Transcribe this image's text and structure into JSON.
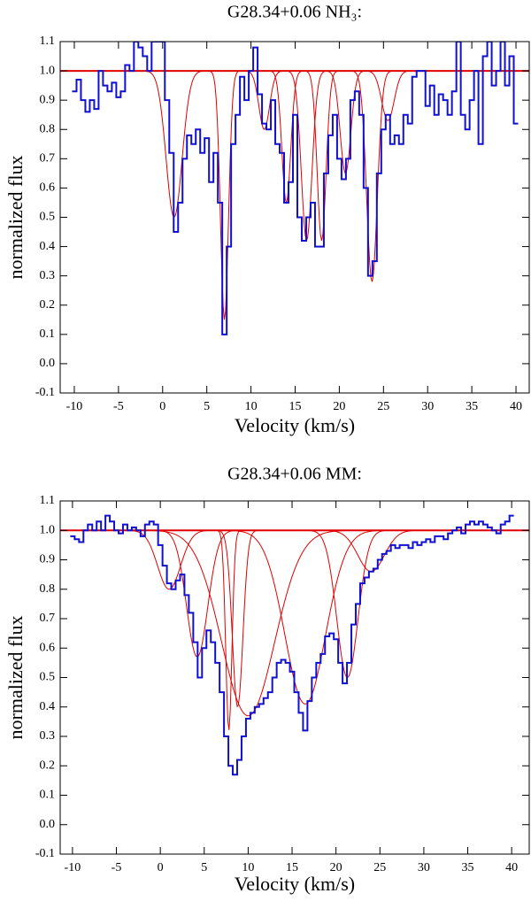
{
  "chart_data": [
    {
      "type": "step",
      "title": "G28.34+0.06 NH₃:",
      "x_label": "Velocity (km/s)",
      "y_label": "normalized flux",
      "xlim": [
        -11.6,
        41.5
      ],
      "ylim": [
        -0.1,
        1.1
      ],
      "xticks": [
        -10,
        -5,
        0,
        5,
        10,
        15,
        20,
        25,
        30,
        35,
        40
      ],
      "yticks": [
        -0.1,
        {
          "value": 0,
          "label": "0.0"
        },
        0.1,
        0.2,
        0.3,
        0.4,
        0.5,
        0.6,
        0.7,
        0.8,
        0.9,
        {
          "value": 1,
          "label": "1.0"
        },
        1.1
      ],
      "continuum": 1,
      "fit_color": "#e00000",
      "x": [
        -10,
        -9.5,
        -9,
        -8.5,
        -8,
        -7.5,
        -7,
        -6.5,
        -6,
        -5.5,
        -5,
        -4.5,
        -4,
        -3.5,
        -3,
        -2.5,
        -2,
        -1.5,
        -1,
        -0.5,
        0,
        0.5,
        1,
        1.5,
        2,
        2.5,
        3,
        3.5,
        4,
        4.5,
        5,
        5.5,
        6,
        6.5,
        7,
        7.5,
        8,
        8.5,
        9,
        9.5,
        10,
        10.5,
        11,
        11.5,
        12,
        12.5,
        13,
        13.5,
        14,
        14.5,
        15,
        15.5,
        16,
        16.5,
        17,
        17.5,
        18,
        18.5,
        19,
        19.5,
        20,
        20.5,
        21,
        21.5,
        22,
        22.5,
        23,
        23.5,
        24,
        24.5,
        25,
        25.5,
        26,
        26.5,
        27,
        27.5,
        28,
        28.5,
        29,
        29.5,
        30,
        30.5,
        31,
        31.5,
        32,
        32.5,
        33,
        33.5,
        34,
        34.5,
        35,
        35.5,
        36,
        36.5,
        37,
        37.5,
        38,
        38.5,
        39,
        39.5,
        40
      ],
      "series": [
        {
          "color": "#1010d0",
          "values": [
            0.93,
            0.97,
            0.9,
            0.86,
            0.9,
            0.87,
            1.0,
            0.95,
            0.93,
            0.96,
            0.91,
            0.93,
            1.02,
            1.0,
            1.1,
            1.08,
            1.05,
            1.0,
            1.1,
            1.1,
            1.1,
            0.9,
            0.72,
            0.45,
            0.55,
            0.7,
            0.78,
            0.75,
            0.8,
            0.72,
            0.77,
            0.62,
            0.72,
            0.55,
            0.1,
            0.4,
            0.75,
            0.85,
            0.98,
            0.9,
            1.0,
            1.08,
            0.92,
            0.82,
            0.8,
            0.9,
            0.75,
            0.72,
            0.55,
            0.62,
            0.85,
            0.5,
            0.42,
            0.5,
            0.55,
            0.4,
            0.4,
            0.65,
            0.78,
            0.85,
            0.7,
            0.63,
            0.7,
            0.9,
            0.93,
            0.85,
            0.6,
            0.3,
            0.35,
            0.65,
            0.8,
            0.85,
            0.75,
            0.78,
            0.75,
            0.85,
            0.82,
            0.98,
            1.0,
            1.0,
            0.88,
            0.95,
            0.85,
            0.92,
            0.9,
            0.85,
            0.93,
            1.1,
            0.85,
            0.8,
            0.9,
            1.0,
            0.75,
            1.05,
            1.1,
            0.95,
            1.0,
            1.1,
            0.95,
            1.05,
            0.82
          ]
        }
      ],
      "components": [
        {
          "center": 1.3,
          "depth": 0.5,
          "sigma": 0.9
        },
        {
          "center": 7.0,
          "depth": 0.15,
          "sigma": 0.45
        },
        {
          "center": 11.5,
          "depth": 0.8,
          "sigma": 0.6
        },
        {
          "center": 14.0,
          "depth": 0.55,
          "sigma": 0.5
        },
        {
          "center": 16.3,
          "depth": 0.42,
          "sigma": 0.6
        },
        {
          "center": 18.0,
          "depth": 0.42,
          "sigma": 0.5
        },
        {
          "center": 20.7,
          "depth": 0.65,
          "sigma": 0.6
        },
        {
          "center": 23.7,
          "depth": 0.28,
          "sigma": 0.6
        },
        {
          "center": 25.5,
          "depth": 0.83,
          "sigma": 0.7
        }
      ]
    },
    {
      "type": "step",
      "title": "G28.34+0.06 MM:",
      "x_label": "Velocity (km/s)",
      "y_label": "normalized flux",
      "xlim": [
        -11.4,
        42
      ],
      "ylim": [
        -0.1,
        1.1
      ],
      "xticks": [
        -10,
        -5,
        0,
        5,
        10,
        15,
        20,
        25,
        30,
        35,
        40
      ],
      "yticks": [
        -0.1,
        {
          "value": 0,
          "label": "0.0"
        },
        0.1,
        0.2,
        0.3,
        0.4,
        0.5,
        0.6,
        0.7,
        0.8,
        0.9,
        {
          "value": 1,
          "label": "1.0"
        },
        1.1
      ],
      "continuum": 1,
      "fit_color": "#e00000",
      "x": [
        -10,
        -9.5,
        -9,
        -8.5,
        -8,
        -7.5,
        -7,
        -6.5,
        -6,
        -5.5,
        -5,
        -4.5,
        -4,
        -3.5,
        -3,
        -2.5,
        -2,
        -1.5,
        -1,
        -0.5,
        0,
        0.5,
        1,
        1.5,
        2,
        2.5,
        3,
        3.5,
        4,
        4.5,
        5,
        5.5,
        6,
        6.5,
        7,
        7.5,
        8,
        8.5,
        9,
        9.5,
        10,
        10.5,
        11,
        11.5,
        12,
        12.5,
        13,
        13.5,
        14,
        14.5,
        15,
        15.5,
        16,
        16.5,
        17,
        17.5,
        18,
        18.5,
        19,
        19.5,
        20,
        20.5,
        21,
        21.5,
        22,
        22.5,
        23,
        23.5,
        24,
        24.5,
        25,
        25.5,
        26,
        26.5,
        27,
        27.5,
        28,
        28.5,
        29,
        29.5,
        30,
        30.5,
        31,
        31.5,
        32,
        32.5,
        33,
        33.5,
        34,
        34.5,
        35,
        35.5,
        36,
        36.5,
        37,
        37.5,
        38,
        38.5,
        39,
        39.5,
        40
      ],
      "series": [
        {
          "color": "#1010d0",
          "values": [
            0.98,
            0.97,
            0.96,
            1.0,
            1.02,
            1.0,
            1.03,
            1.0,
            1.05,
            1.03,
            1.0,
            0.99,
            1.02,
            1.0,
            1.01,
            1.0,
            0.98,
            1.02,
            1.03,
            1.02,
            0.95,
            0.88,
            0.82,
            0.8,
            0.83,
            0.85,
            0.78,
            0.72,
            0.62,
            0.5,
            0.6,
            0.66,
            0.62,
            0.55,
            0.45,
            0.3,
            0.2,
            0.17,
            0.22,
            0.3,
            0.36,
            0.38,
            0.4,
            0.41,
            0.43,
            0.45,
            0.5,
            0.55,
            0.56,
            0.55,
            0.52,
            0.45,
            0.38,
            0.32,
            0.42,
            0.5,
            0.55,
            0.58,
            0.64,
            0.65,
            0.63,
            0.55,
            0.48,
            0.55,
            0.68,
            0.75,
            0.82,
            0.84,
            0.86,
            0.87,
            0.9,
            0.92,
            0.93,
            0.95,
            0.94,
            0.95,
            0.95,
            0.94,
            0.96,
            0.95,
            0.96,
            0.97,
            0.96,
            0.98,
            0.98,
            0.97,
            0.99,
            1.0,
            1.01,
            0.99,
            1.02,
            1.03,
            1.02,
            1.03,
            1.02,
            1.01,
            1.0,
            0.99,
            1.02,
            1.03,
            1.05
          ]
        }
      ],
      "components": [
        {
          "center": 1.0,
          "depth": 0.8,
          "sigma": 1.3
        },
        {
          "center": 4.2,
          "depth": 0.57,
          "sigma": 1.2
        },
        {
          "center": 7.8,
          "depth": 0.32,
          "sigma": 0.35
        },
        {
          "center": 8.8,
          "depth": 0.4,
          "sigma": 0.6
        },
        {
          "center": 10.0,
          "depth": 0.37,
          "sigma": 3.0
        },
        {
          "center": 16.5,
          "depth": 0.41,
          "sigma": 2.3
        },
        {
          "center": 21.3,
          "depth": 0.5,
          "sigma": 1.2
        },
        {
          "center": 24.0,
          "depth": 0.86,
          "sigma": 1.5
        }
      ]
    }
  ]
}
